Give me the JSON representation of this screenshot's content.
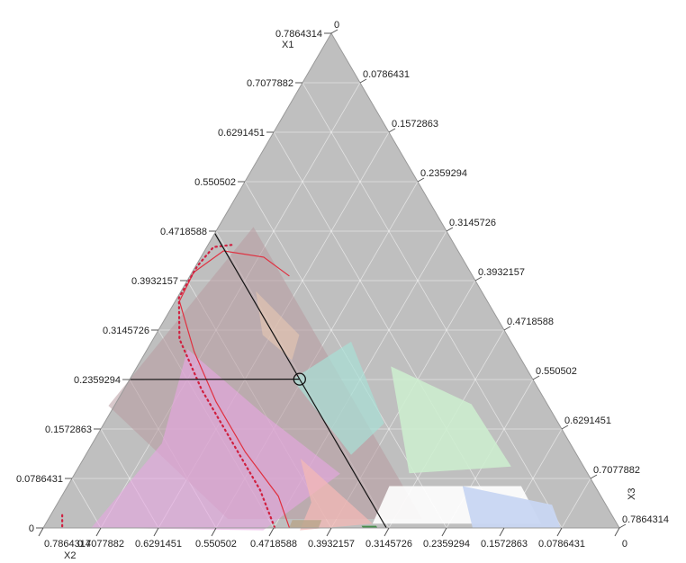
{
  "chart_data": {
    "type": "ternary",
    "axes": {
      "x1": {
        "title": "X1",
        "range": [
          0,
          0.7864314
        ],
        "tick_labels": [
          "0",
          "0.0786431",
          "0.1572863",
          "0.2359294",
          "0.3145726",
          "0.3932157",
          "0.4718588",
          "0.550502",
          "0.6291451",
          "0.7077882",
          "0.7864314"
        ]
      },
      "x2": {
        "title": "X2",
        "range": [
          0,
          0.7864314
        ],
        "tick_labels": [
          "0.7864314",
          "0.7077882",
          "0.6291451",
          "0.550502",
          "0.4718588",
          "0.3932157",
          "0.3145726",
          "0.2359294",
          "0.1572863",
          "0.0786431",
          "0"
        ]
      },
      "x3": {
        "title": "X3",
        "range": [
          0,
          0.7864314
        ],
        "tick_labels": [
          "0",
          "0.0786431",
          "0.1572863",
          "0.2359294",
          "0.3145726",
          "0.3932157",
          "0.4718588",
          "0.550502",
          "0.6291451",
          "0.7077882",
          "0.7864314"
        ]
      }
    },
    "crosshair": {
      "x1": 0.236,
      "x2": 0.318,
      "x3": 0.232
    },
    "regions": [
      {
        "name": "tan",
        "color": "#b89aa0",
        "opacity": 0.55,
        "points": [
          [
            0.478,
            0.26,
            0.048
          ],
          [
            0.18,
            0.593,
            0.0
          ],
          [
            0.0,
            0.52,
            0.253
          ],
          [
            0.0,
            0.255,
            0.518
          ]
        ]
      },
      {
        "name": "pink",
        "color": "#e8a6e2",
        "opacity": 0.6,
        "points": [
          [
            0.27,
            0.44,
            0.063
          ],
          [
            0.12,
            0.55,
            0.103
          ],
          [
            0.0,
            0.72,
            0.066
          ],
          [
            0.0,
            0.49,
            0.3
          ],
          [
            0.09,
            0.34,
            0.36
          ],
          [
            0.17,
            0.39,
            0.216
          ]
        ]
      },
      {
        "name": "peach",
        "color": "#e8c8b0",
        "opacity": 0.6,
        "points": [
          [
            0.38,
            0.31,
            0.1
          ],
          [
            0.3,
            0.33,
            0.15
          ],
          [
            0.26,
            0.31,
            0.21
          ],
          [
            0.3,
            0.28,
            0.2
          ]
        ]
      },
      {
        "name": "salmon",
        "color": "#f3b8b6",
        "opacity": 0.75,
        "points": [
          [
            0.11,
            0.38,
            0.296
          ],
          [
            0.04,
            0.4,
            0.346
          ],
          [
            0.0,
            0.44,
            0.35
          ],
          [
            0.0,
            0.33,
            0.45
          ]
        ]
      },
      {
        "name": "teal",
        "color": "#a8e0d6",
        "opacity": 0.7,
        "points": [
          [
            0.3,
            0.22,
            0.27
          ],
          [
            0.17,
            0.24,
            0.38
          ],
          [
            0.12,
            0.31,
            0.36
          ],
          [
            0.24,
            0.33,
            0.22
          ]
        ]
      },
      {
        "name": "light-green",
        "color": "#cdeecf",
        "opacity": 0.85,
        "points": [
          [
            0.25,
            0.18,
            0.35
          ],
          [
            0.08,
            0.24,
            0.46
          ],
          [
            0.08,
            0.09,
            0.6
          ],
          [
            0.19,
            0.1,
            0.49
          ]
        ]
      },
      {
        "name": "white",
        "color": "#ffffff",
        "opacity": 0.9,
        "points": [
          [
            0.065,
            0.28,
            0.44
          ],
          [
            0.0,
            0.33,
            0.45
          ],
          [
            0.0,
            0.1,
            0.68
          ],
          [
            0.065,
            0.1,
            0.62
          ]
        ]
      },
      {
        "name": "blue",
        "color": "#c8d6f2",
        "opacity": 0.95,
        "points": [
          [
            0.065,
            0.18,
            0.54
          ],
          [
            0.0,
            0.2,
            0.586
          ],
          [
            0.0,
            0.08,
            0.706
          ],
          [
            0.03,
            0.07,
            0.68
          ]
        ]
      },
      {
        "name": "brown-base",
        "color": "#b8a58a",
        "opacity": 0.8,
        "points": [
          [
            0.012,
            0.44,
            0.334
          ],
          [
            0.0,
            0.45,
            0.336
          ],
          [
            0.0,
            0.41,
            0.376
          ],
          [
            0.012,
            0.4,
            0.374
          ]
        ]
      },
      {
        "name": "dark-green-base",
        "color": "#3a8a40",
        "opacity": 0.9,
        "points": [
          [
            0.003,
            0.35,
            0.433
          ],
          [
            0.0,
            0.35,
            0.436
          ],
          [
            0.0,
            0.33,
            0.456
          ],
          [
            0.003,
            0.33,
            0.453
          ]
        ]
      }
    ],
    "curves": [
      {
        "name": "red-contour",
        "color": "#e03040",
        "style": "solid",
        "points": [
          [
            0.0,
            0.45,
            0.336
          ],
          [
            0.05,
            0.44,
            0.296
          ],
          [
            0.12,
            0.45,
            0.216
          ],
          [
            0.2,
            0.45,
            0.136
          ],
          [
            0.28,
            0.44,
            0.066
          ],
          [
            0.36,
            0.42,
            0.006
          ],
          [
            0.41,
            0.38,
            0.0
          ],
          [
            0.44,
            0.32,
            0.026
          ],
          [
            0.43,
            0.27,
            0.086
          ],
          [
            0.4,
            0.25,
            0.136
          ]
        ]
      },
      {
        "name": "red-dotted-contour",
        "color": "#d02040",
        "style": "dotted",
        "points": [
          [
            0.0,
            0.47,
            0.316
          ],
          [
            0.06,
            0.46,
            0.266
          ],
          [
            0.14,
            0.46,
            0.186
          ],
          [
            0.22,
            0.46,
            0.106
          ],
          [
            0.3,
            0.45,
            0.036
          ],
          [
            0.37,
            0.42,
            0.0
          ],
          [
            0.42,
            0.37,
            0.0
          ],
          [
            0.445,
            0.33,
            0.01
          ],
          [
            0.45,
            0.3,
            0.036
          ]
        ]
      },
      {
        "name": "red-dotted-left",
        "color": "#d02040",
        "style": "dotted",
        "points": [
          [
            0.02,
            0.75,
            0.016
          ],
          [
            0.0,
            0.76,
            0.026
          ]
        ]
      }
    ]
  }
}
